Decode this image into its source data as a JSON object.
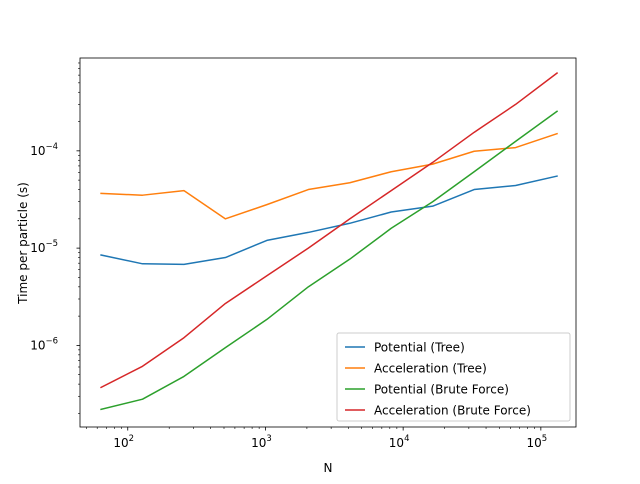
{
  "chart_data": {
    "type": "line",
    "title": "",
    "xlabel": "N",
    "ylabel": "Time per particle (s)",
    "xscale": "log",
    "yscale": "log",
    "xlim": [
      45,
      180000
    ],
    "ylim": [
      1.45e-07,
      0.0009
    ],
    "x": [
      64,
      128,
      256,
      512,
      1024,
      2048,
      4096,
      8192,
      16384,
      32768,
      65536,
      131072
    ],
    "x_ticks": [
      100,
      1000,
      10000,
      100000
    ],
    "x_tick_labels": [
      {
        "base": "10",
        "exp": "2"
      },
      {
        "base": "10",
        "exp": "3"
      },
      {
        "base": "10",
        "exp": "4"
      },
      {
        "base": "10",
        "exp": "5"
      }
    ],
    "y_ticks": [
      1e-06,
      1e-05,
      0.0001
    ],
    "y_tick_labels": [
      {
        "base": "10",
        "exp": "−6"
      },
      {
        "base": "10",
        "exp": "−5"
      },
      {
        "base": "10",
        "exp": "−4"
      }
    ],
    "grid": false,
    "legend_position": "lower-right",
    "series": [
      {
        "name": "Potential (Tree)",
        "color": "#1f77b4",
        "values": [
          8.5e-06,
          6.9e-06,
          6.8e-06,
          8e-06,
          1.2e-05,
          1.45e-05,
          1.8e-05,
          2.35e-05,
          2.7e-05,
          4e-05,
          4.4e-05,
          5.5e-05
        ]
      },
      {
        "name": "Acceleration (Tree)",
        "color": "#ff7f0e",
        "values": [
          3.65e-05,
          3.5e-05,
          3.9e-05,
          2e-05,
          2.8e-05,
          4e-05,
          4.7e-05,
          6.1e-05,
          7.3e-05,
          9.9e-05,
          0.000108,
          0.00015
        ]
      },
      {
        "name": "Potential (Brute Force)",
        "color": "#2ca02c",
        "values": [
          2.2e-07,
          2.8e-07,
          4.8e-07,
          9.5e-07,
          1.85e-06,
          4e-06,
          7.7e-06,
          1.6e-05,
          3e-05,
          6.1e-05,
          0.000125,
          0.000255
        ]
      },
      {
        "name": "Acceleration (Brute Force)",
        "color": "#d62728",
        "values": [
          3.7e-07,
          6.1e-07,
          1.2e-06,
          2.7e-06,
          5.2e-06,
          1e-05,
          2e-05,
          3.9e-05,
          7.6e-05,
          0.000155,
          0.0003,
          0.00063
        ]
      }
    ]
  }
}
